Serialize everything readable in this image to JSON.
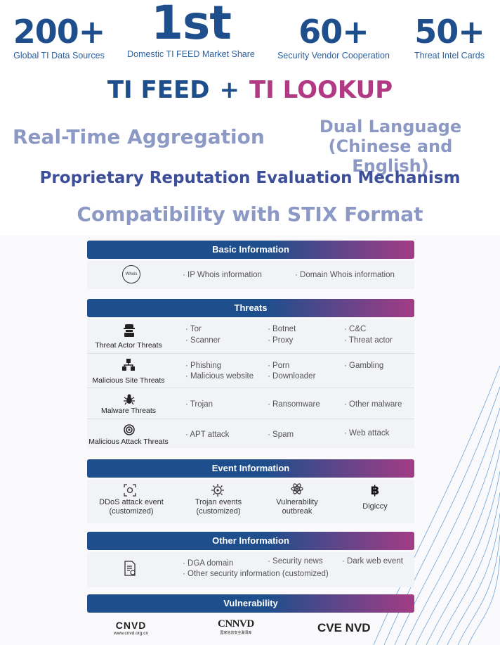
{
  "stats": [
    {
      "value": "200+",
      "caption": "Global TI Data Sources"
    },
    {
      "value": "1st",
      "caption": "Domestic TI FEED Market Share"
    },
    {
      "value": "60+",
      "caption": "Security Vendor Cooperation"
    },
    {
      "value": "50+",
      "caption": "Threat Intel Cards"
    }
  ],
  "headline": {
    "left": "TI FEED",
    "plus": "+",
    "right": "TI LOOKUP"
  },
  "features": {
    "realtime": "Real-Time Aggregation",
    "dual_line1": "Dual Language",
    "dual_line2": "(Chinese and English)",
    "reputation": "Proprietary Reputation Evaluation Mechanism",
    "stix": "Compatibility with STIX Format"
  },
  "basic": {
    "title": "Basic Information",
    "icon_text": "Whois",
    "items": [
      "· IP Whois information",
      "· Domain Whois information"
    ]
  },
  "threats": {
    "title": "Threats",
    "rows": [
      {
        "label": "Threat Actor Threats",
        "cols": [
          [
            "· Tor",
            "· Scanner"
          ],
          [
            "· Botnet",
            "· Proxy"
          ],
          [
            "· C&C",
            "· Threat actor"
          ]
        ]
      },
      {
        "label": "Malicious Site Threats",
        "cols": [
          [
            "· Phishing",
            "· Malicious website"
          ],
          [
            "· Porn",
            "· Downloader"
          ],
          [
            "· Gambling"
          ]
        ]
      },
      {
        "label": "Malware Threats",
        "cols": [
          [
            "· Trojan"
          ],
          [
            "· Ransomware"
          ],
          [
            "· Other malware"
          ]
        ]
      },
      {
        "label": "Malicious Attack Threats",
        "cols": [
          [
            "· APT attack"
          ],
          [
            "· Spam"
          ],
          [
            "· Web attack"
          ]
        ]
      }
    ]
  },
  "events": {
    "title": "Event Information",
    "items": [
      {
        "line1": "DDoS attack event",
        "line2": "(customized)"
      },
      {
        "line1": "Trojan events",
        "line2": "(customized)"
      },
      {
        "line1": "Vulnerability",
        "line2": "outbreak"
      },
      {
        "line1": "Digiccy",
        "line2": ""
      }
    ]
  },
  "other": {
    "title": "Other Information",
    "items": [
      "· DGA domain",
      "· Security news",
      "· Dark web event",
      "· Other security information  (customized)"
    ]
  },
  "vulnerability": {
    "title": "Vulnerability",
    "logos": [
      {
        "name": "CNVD",
        "sub": "www.cnvd.org.cn"
      },
      {
        "name": "CNNVD",
        "sub": "国家信息安全漏洞库"
      },
      {
        "name": "CVE NVD",
        "sub": ""
      }
    ]
  },
  "colors": {
    "navy": "#1f4e8c",
    "magenta": "#b23a84",
    "lavender": "#8c99c4",
    "indigo": "#3d4f9a"
  }
}
